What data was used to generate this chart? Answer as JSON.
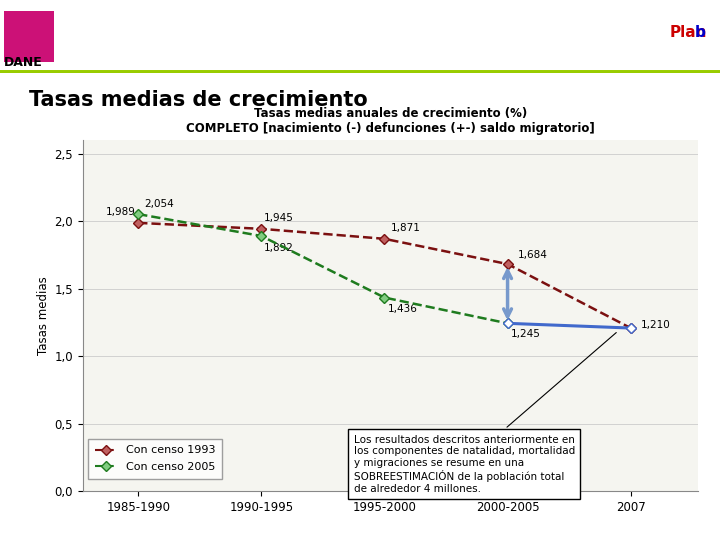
{
  "title_line1": "Tasas medias anuales de crecimiento (%)",
  "title_line2": "COMPLETO [nacimiento (-) defunciones (+-) saldo migratorio]",
  "main_title": "Tasas medias de crecimiento",
  "xlabel_categories": [
    "1985-1990",
    "1990-1995",
    "1995-2000",
    "2000-2005",
    "2007"
  ],
  "series1_label": "Con censo 1993",
  "series1_values": [
    1.989,
    1.945,
    1.871,
    1.684,
    1.21
  ],
  "series1_color": "#7B1010",
  "series2_label": "Con censo 2005",
  "series2_values": [
    2.054,
    1.892,
    1.436,
    1.245,
    1.21
  ],
  "series2_color": "#1E7B1E",
  "blue_line_color": "#4169CC",
  "ylabel": "Tasas medias",
  "ylim": [
    0.0,
    2.6
  ],
  "yticks": [
    0.0,
    0.5,
    1.0,
    1.5,
    2.0,
    2.5
  ],
  "ytick_labels": [
    "0,0",
    "0,5",
    "1,0",
    "1,5",
    "2,0",
    "2,5"
  ],
  "annotation_text": "Los resultados descritos anteriormente en\nlos componentes de natalidad, mortalidad\ny migraciones se resume en una\nSOBREESTIMACIÓN de la población total\nde alrededor 4 millones.",
  "bg_color": "#f0f0f0",
  "plot_bg_color": "#f5f5f0",
  "data_labels_s1": [
    "1,989",
    "1,945",
    "1,871",
    "1,684",
    "1,210"
  ],
  "data_labels_s2": [
    "2,054",
    "1,892",
    "1,436",
    "1,245"
  ],
  "header_bg": "#d8d8d8",
  "green_stripe": "#99cc00"
}
